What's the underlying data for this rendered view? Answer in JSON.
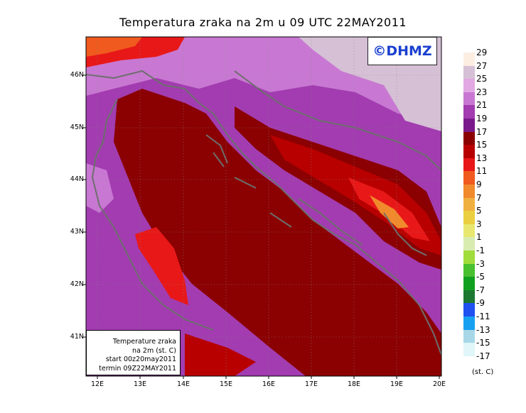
{
  "title": "Temperatura zraka na 2m u 09 UTC 22MAY2011",
  "logo": "©DHMZ",
  "info_box": [
    "Temperature zraka",
    "na 2m (st. C)",
    "start 00z20may2011",
    "termin 09Z22MAY2011"
  ],
  "lat_labels": [
    "46N",
    "45N",
    "44N",
    "43N",
    "42N",
    "41N"
  ],
  "lon_labels": [
    "12E",
    "13E",
    "14E",
    "15E",
    "16E",
    "17E",
    "18E",
    "19E",
    "20E"
  ],
  "legend": {
    "unit": "(st. C)",
    "labels": [
      "29",
      "27",
      "25",
      "23",
      "21",
      "19",
      "17",
      "15",
      "13",
      "11",
      "9",
      "7",
      "5",
      "3",
      "1",
      "-1",
      "-3",
      "-5",
      "-7",
      "-9",
      "-11",
      "-13",
      "-15",
      "-17"
    ],
    "colors": [
      "#fdeee2",
      "#d6c0d6",
      "#e2a8e2",
      "#c878d2",
      "#a23cb0",
      "#7a1a8a",
      "#8b0000",
      "#b80000",
      "#e81818",
      "#f05a1e",
      "#f08a2c",
      "#f0b040",
      "#ead040",
      "#e8e870",
      "#d8ecb0",
      "#a0dc3c",
      "#48c030",
      "#10a020",
      "#1c7830",
      "#2050f0",
      "#18a0f0",
      "#a8d8e8",
      "#e0f6f8"
    ]
  },
  "colors": {
    "sea": "#8b0000",
    "coast_line": "#6e6e6e",
    "grid": "#888888",
    "logo_text": "#1a3fd0"
  }
}
